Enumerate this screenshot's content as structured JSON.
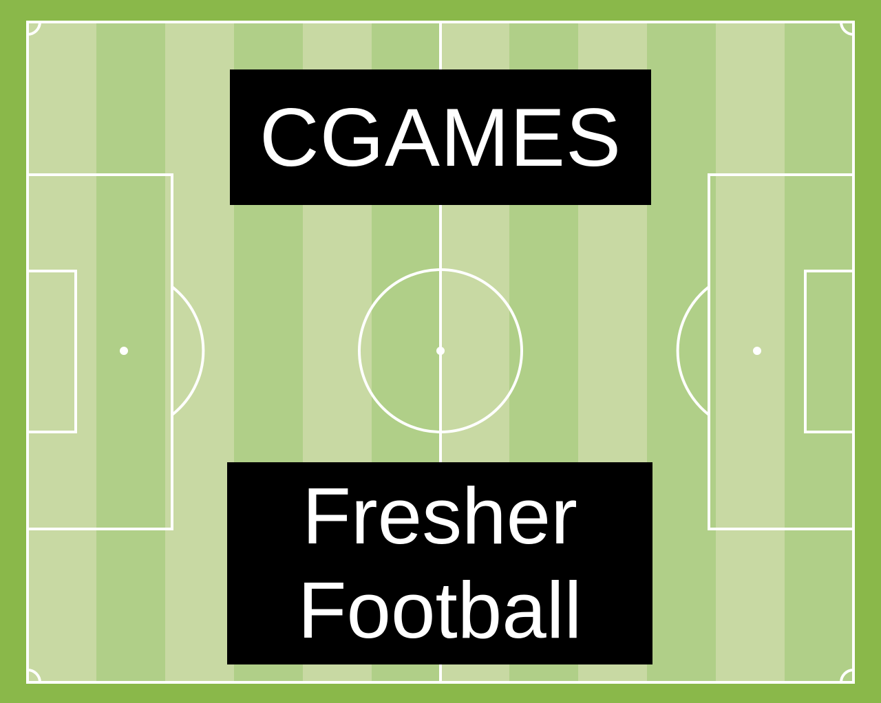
{
  "pitch": {
    "outer_color": "#8ab84a",
    "stripe_light": "#c8d9a3",
    "stripe_dark": "#b0cf88",
    "line_color": "#ffffff"
  },
  "titles": {
    "top": "CGAMES",
    "bottom_line1": "Fresher",
    "bottom_line2": "Football"
  },
  "title_box_color": "#000000",
  "title_text_color": "#ffffff"
}
